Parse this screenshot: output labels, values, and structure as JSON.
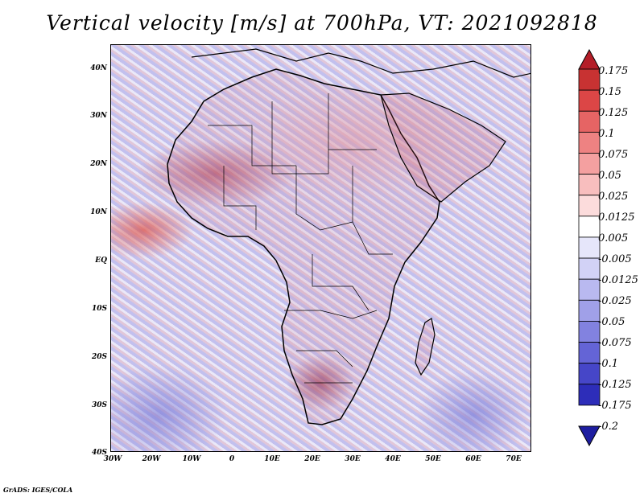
{
  "title": "Vertical velocity [m/s] at 700hPa, VT: 2021092818",
  "footer": "GrADS: IGES/COLA",
  "map": {
    "lat_labels": [
      "40N",
      "30N",
      "20N",
      "10N",
      "EQ",
      "10S",
      "20S",
      "30S",
      "40S"
    ],
    "lon_labels": [
      "30W",
      "20W",
      "10W",
      "0",
      "10E",
      "20E",
      "30E",
      "40E",
      "50E",
      "60E",
      "70E"
    ]
  },
  "colorbar": {
    "labels": [
      "0.175",
      "0.15",
      "0.125",
      "0.1",
      "0.075",
      "0.05",
      "0.025",
      "0.0125",
      "0.005",
      "-0.005",
      "-0.0125",
      "-0.025",
      "-0.05",
      "-0.075",
      "-0.1",
      "-0.125",
      "-0.175",
      "-0.2"
    ],
    "colors": [
      "#b41e28",
      "#c83232",
      "#dc4646",
      "#e66464",
      "#ee8282",
      "#f4a0a0",
      "#f8bebe",
      "#fcdcdc",
      "#ffffff",
      "#e6e6fa",
      "#d2d2f6",
      "#b9b9f0",
      "#a0a0e8",
      "#8282e0",
      "#6464d6",
      "#4646c8",
      "#2d2db9",
      "#1e1ea0"
    ]
  }
}
